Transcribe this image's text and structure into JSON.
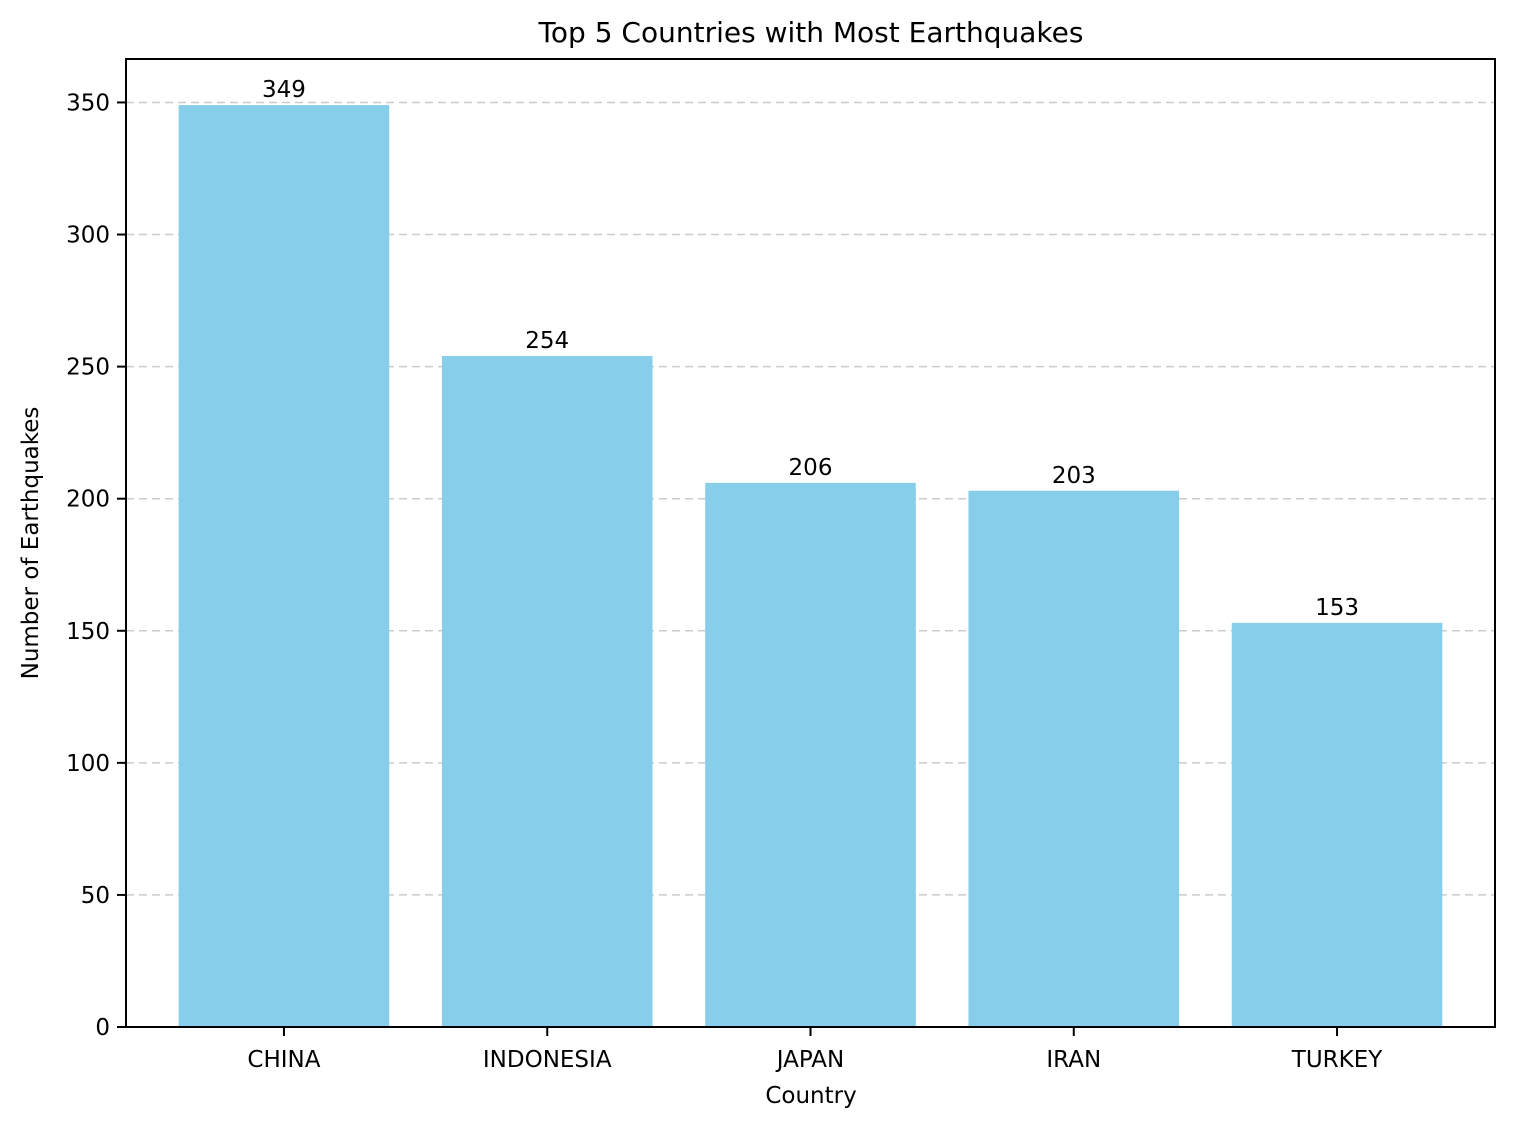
{
  "chart_data": {
    "type": "bar",
    "title": "Top 5 Countries with Most Earthquakes",
    "xlabel": "Country",
    "ylabel": "Number of Earthquakes",
    "categories": [
      "CHINA",
      "INDONESIA",
      "JAPAN",
      "IRAN",
      "TURKEY"
    ],
    "values": [
      349,
      254,
      206,
      203,
      153
    ],
    "data_labels": [
      "349",
      "254",
      "206",
      "203",
      "153"
    ],
    "yticks": [
      0,
      50,
      100,
      150,
      200,
      250,
      300,
      350
    ],
    "ytick_labels": [
      "0",
      "50",
      "100",
      "150",
      "200",
      "250",
      "300",
      "350"
    ],
    "ylim": [
      0,
      366.45
    ],
    "grid": "y-dashed",
    "bar_color": "#87ceeb",
    "grid_color": "#cccccc"
  }
}
